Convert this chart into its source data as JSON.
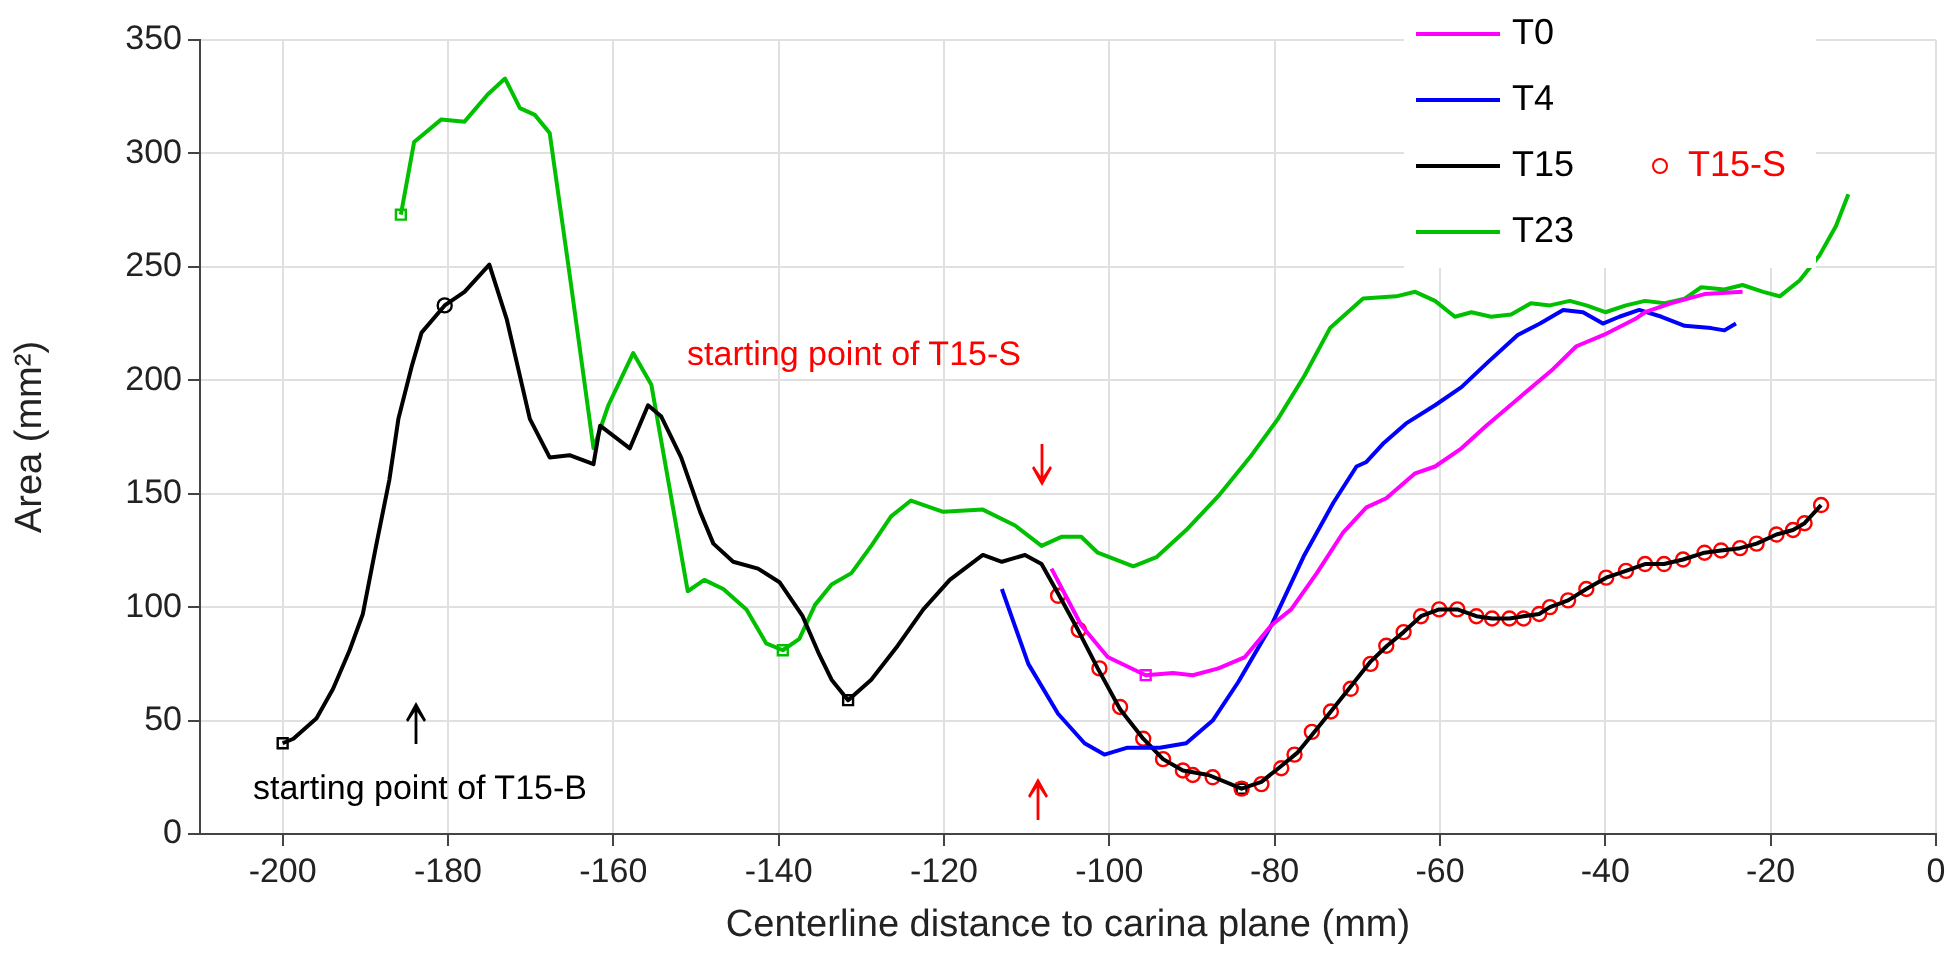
{
  "chart_data": {
    "type": "line",
    "xlabel": "Centerline distance to carina plane (mm)",
    "ylabel": "Area (mm²)",
    "xlim": [
      -210,
      0
    ],
    "xticks": [
      -200,
      -180,
      -160,
      -140,
      -120,
      -100,
      -80,
      -60,
      -40,
      -20,
      0
    ],
    "ylim": [
      0,
      350
    ],
    "yticks": [
      0,
      50,
      100,
      150,
      200,
      250,
      300,
      350
    ],
    "grid": true,
    "legend": "top right",
    "line_style": "solid",
    "annotations": [
      "starting point of T15-S",
      "starting point of T15-B"
    ],
    "series": [
      {
        "name": "T0",
        "type": "line",
        "color": "#ff00ff",
        "marker": "none",
        "x": [
          -107,
          -103.4,
          -100.2,
          -95.6,
          -92.3,
          -89.9,
          -86.8,
          -83.6,
          -80.4,
          -78,
          -74.9,
          -71.7,
          -68.9,
          -66.5,
          -63,
          -60.6,
          -57.4,
          -54.4,
          -50.2,
          -46.3,
          -43.5,
          -40.2,
          -36.4,
          -35.2,
          -32,
          -28,
          -23.4
        ],
        "values": [
          117,
          92,
          78,
          70,
          71,
          70,
          73,
          78,
          92,
          99,
          115,
          133,
          144,
          148,
          159,
          162,
          170,
          180,
          193,
          205,
          215,
          220,
          227,
          230,
          234,
          238,
          239
        ]
      },
      {
        "name": "T4",
        "type": "line",
        "color": "#0000ff",
        "marker": "none",
        "x": [
          -113,
          -109.8,
          -106.2,
          -103,
          -100.6,
          -97.9,
          -93.9,
          -90.7,
          -87.5,
          -84.4,
          -80.4,
          -76.4,
          -72.9,
          -70.1,
          -68.9,
          -66.9,
          -64.1,
          -60.6,
          -57.4,
          -54.2,
          -50.6,
          -47.9,
          -45.1,
          -42.7,
          -40.3,
          -38.3,
          -35.9,
          -33.2,
          -30.4,
          -27.2,
          -25.6,
          -24.2
        ],
        "values": [
          108,
          75,
          53,
          40,
          35,
          38,
          38,
          40,
          50,
          67,
          92,
          123,
          146,
          162,
          164,
          172,
          181,
          189,
          197,
          208,
          220,
          225,
          231,
          230,
          225,
          228,
          231,
          228,
          224,
          223,
          222,
          225
        ]
      },
      {
        "name": "T15",
        "type": "line",
        "color": "#000000",
        "marker": "none",
        "x": [
          -200,
          -198.7,
          -195.9,
          -193.9,
          -191.9,
          -190.3,
          -188.7,
          -187.1,
          -186,
          -184.4,
          -183.2,
          -180.4,
          -178,
          -175,
          -172.9,
          -170.1,
          -167.7,
          -165.3,
          -162.4,
          -161.6,
          -158,
          -155.8,
          -154.2,
          -151.8,
          -149.5,
          -147.9,
          -145.5,
          -142.5,
          -139.9,
          -137.1,
          -135.2,
          -133.6,
          -131.6,
          -128.8,
          -125.6,
          -122.5,
          -119.3,
          -115.3,
          -113,
          -110.2,
          -108.2,
          -106.2,
          -103.8,
          -101.4,
          -98.7,
          -95.9,
          -93.5,
          -91.1,
          -88,
          -84,
          -81.6,
          -79.2,
          -77.2,
          -75.2,
          -73.2,
          -70.8,
          -68.4,
          -66.4,
          -64.4,
          -62.3,
          -60.1,
          -57.9,
          -55.6,
          -53.7,
          -51.6,
          -49.9,
          -48,
          -46.7,
          -44.5,
          -42.3,
          -39.9,
          -37.5,
          -35.2,
          -32.9,
          -30.6,
          -28,
          -26,
          -23.7,
          -21.7,
          -19.3,
          -17.3,
          -15.9,
          -13.9
        ],
        "values": [
          40,
          42,
          51,
          64,
          81,
          97,
          127,
          156,
          183,
          206,
          221,
          233,
          239,
          251,
          227,
          183,
          166,
          167,
          163,
          180,
          170,
          189,
          184,
          166,
          142,
          128,
          120,
          117,
          111,
          96,
          80,
          68,
          59,
          68,
          83,
          99,
          112,
          123,
          120,
          123,
          119,
          106,
          90,
          73,
          55,
          42,
          33,
          28,
          26,
          20,
          23,
          30,
          36,
          45,
          54,
          65,
          76,
          83,
          89,
          96,
          99,
          99,
          96,
          95,
          95,
          96,
          97,
          100,
          103,
          108,
          113,
          116,
          119,
          119,
          121,
          124,
          125,
          126,
          128,
          132,
          134,
          137,
          145
        ]
      },
      {
        "name": "T15-S",
        "type": "scatter",
        "color": "#ff0000",
        "marker": "circle",
        "x": [
          -106.2,
          -103.7,
          -101.2,
          -98.7,
          -95.9,
          -93.5,
          -91.1,
          -89.9,
          -87.5,
          -84,
          -81.6,
          -79.2,
          -77.6,
          -75.5,
          -73.2,
          -70.8,
          -68.4,
          -66.5,
          -64.4,
          -62.3,
          -60.1,
          -57.9,
          -55.6,
          -53.7,
          -51.6,
          -49.9,
          -48,
          -46.7,
          -44.5,
          -42.3,
          -39.9,
          -37.5,
          -35.2,
          -32.9,
          -30.6,
          -28,
          -26,
          -23.7,
          -21.7,
          -19.3,
          -17.3,
          -15.9,
          -13.9
        ],
        "values": [
          105,
          90,
          73,
          56,
          42,
          33,
          28,
          26,
          25,
          20,
          22,
          29,
          35,
          45,
          54,
          64,
          75,
          83,
          89,
          96,
          99,
          99,
          96,
          95,
          95,
          95,
          97,
          100,
          103,
          108,
          113,
          116,
          119,
          119,
          121,
          124,
          125,
          126,
          128,
          132,
          134,
          137,
          145
        ]
      },
      {
        "name": "T23",
        "type": "line",
        "color": "#00c000",
        "marker": "none",
        "x": [
          -185.7,
          -184.1,
          -180.8,
          -178,
          -175.2,
          -173.1,
          -171.3,
          -169.5,
          -167.7,
          -165.3,
          -162.4,
          -160.6,
          -157.6,
          -155.4,
          -151,
          -149,
          -146.7,
          -143.9,
          -141.5,
          -139.5,
          -137.5,
          -135.6,
          -133.6,
          -131.2,
          -128.8,
          -126.4,
          -124,
          -120.1,
          -115.3,
          -111.4,
          -108.2,
          -105.8,
          -103.4,
          -101.4,
          -97.1,
          -94.3,
          -90.7,
          -86.8,
          -82.8,
          -79.6,
          -76.4,
          -73.3,
          -69.3,
          -65.3,
          -63,
          -60.6,
          -58.2,
          -56.2,
          -53.8,
          -51.4,
          -49,
          -46.7,
          -44.3,
          -42.3,
          -40,
          -37.5,
          -35.2,
          -32.8,
          -30.4,
          -28.4,
          -25.6,
          -23.4,
          -20.9,
          -18.9,
          -16.5,
          -14.1,
          -12.1,
          -10.6
        ],
        "values": [
          273,
          305,
          315,
          314,
          326,
          333,
          320,
          317,
          309,
          247,
          170,
          189,
          212,
          198,
          107,
          112,
          108,
          99,
          84,
          81,
          86,
          101,
          110,
          115,
          127,
          140,
          147,
          142,
          143,
          136,
          127,
          131,
          131,
          124,
          118,
          122,
          134,
          149,
          167,
          183,
          202,
          223,
          236,
          237,
          239,
          235,
          228,
          230,
          228,
          229,
          234,
          233,
          235,
          233,
          230,
          233,
          235,
          234,
          236,
          241,
          240,
          242,
          239,
          237,
          244,
          255,
          268,
          282
        ]
      },
      {
        "type": "scatter",
        "color": "#00c000",
        "marker": "square",
        "x": [
          -185.7,
          -139.5
        ],
        "values": [
          273,
          81
        ]
      },
      {
        "type": "scatter",
        "color": "#000000",
        "marker": "square",
        "x": [
          -200,
          -131.6,
          -84
        ],
        "values": [
          40,
          59,
          20
        ]
      },
      {
        "type": "scatter",
        "color": "#ff00ff",
        "marker": "square",
        "x": [
          -95.6
        ],
        "values": [
          70
        ]
      },
      {
        "type": "scatter",
        "color": "#000000",
        "marker": "circle",
        "x": [
          -180.4
        ],
        "values": [
          233
        ]
      }
    ]
  }
}
